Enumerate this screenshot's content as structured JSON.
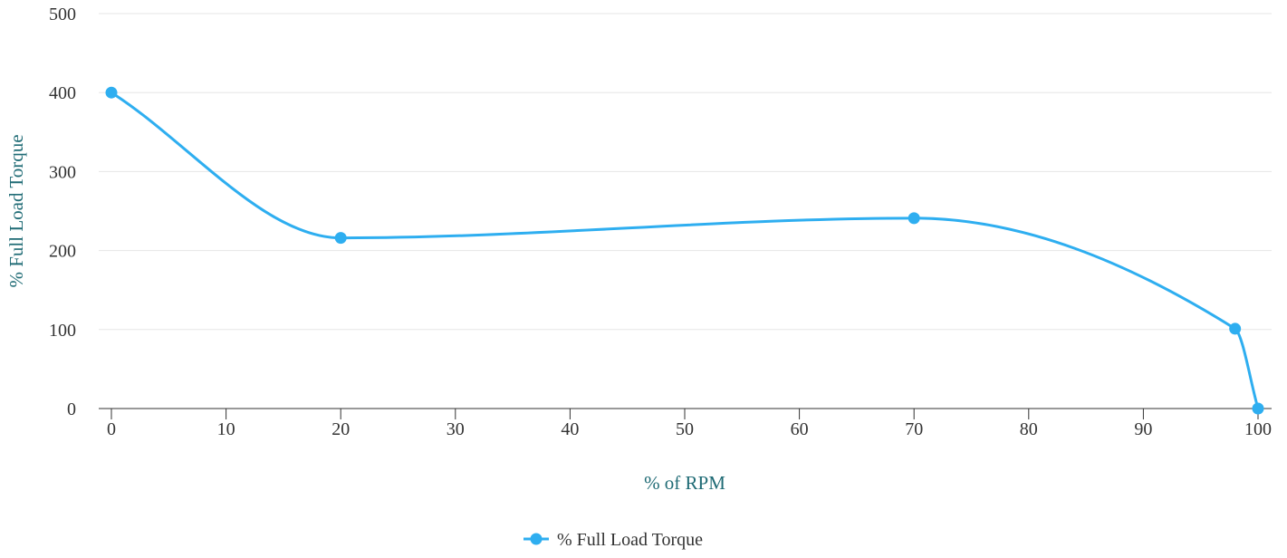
{
  "chart_data": {
    "type": "line",
    "smooth": true,
    "xlabel": "% of RPM",
    "ylabel": "% Full Load Torque",
    "xlim": [
      0,
      100
    ],
    "ylim": [
      0,
      500
    ],
    "x_ticks": [
      "0",
      "10",
      "20",
      "30",
      "40",
      "50",
      "60",
      "70",
      "80",
      "90",
      "100"
    ],
    "y_ticks": [
      "0",
      "100",
      "200",
      "300",
      "400",
      "500"
    ],
    "grid": "horizontal",
    "legend_position": "bottom-center",
    "series": [
      {
        "name": "% Full Load Torque",
        "color": "#2eaef0",
        "points": [
          {
            "x": 0,
            "y": 400
          },
          {
            "x": 20,
            "y": 216
          },
          {
            "x": 70,
            "y": 241
          },
          {
            "x": 98,
            "y": 101
          },
          {
            "x": 100,
            "y": 0
          }
        ]
      }
    ]
  },
  "colors": {
    "series": "#2eaef0",
    "axis_title": "#1f6b75",
    "tick_label": "#333333",
    "gridline": "#e6e6e6",
    "axis_line": "#333333"
  }
}
